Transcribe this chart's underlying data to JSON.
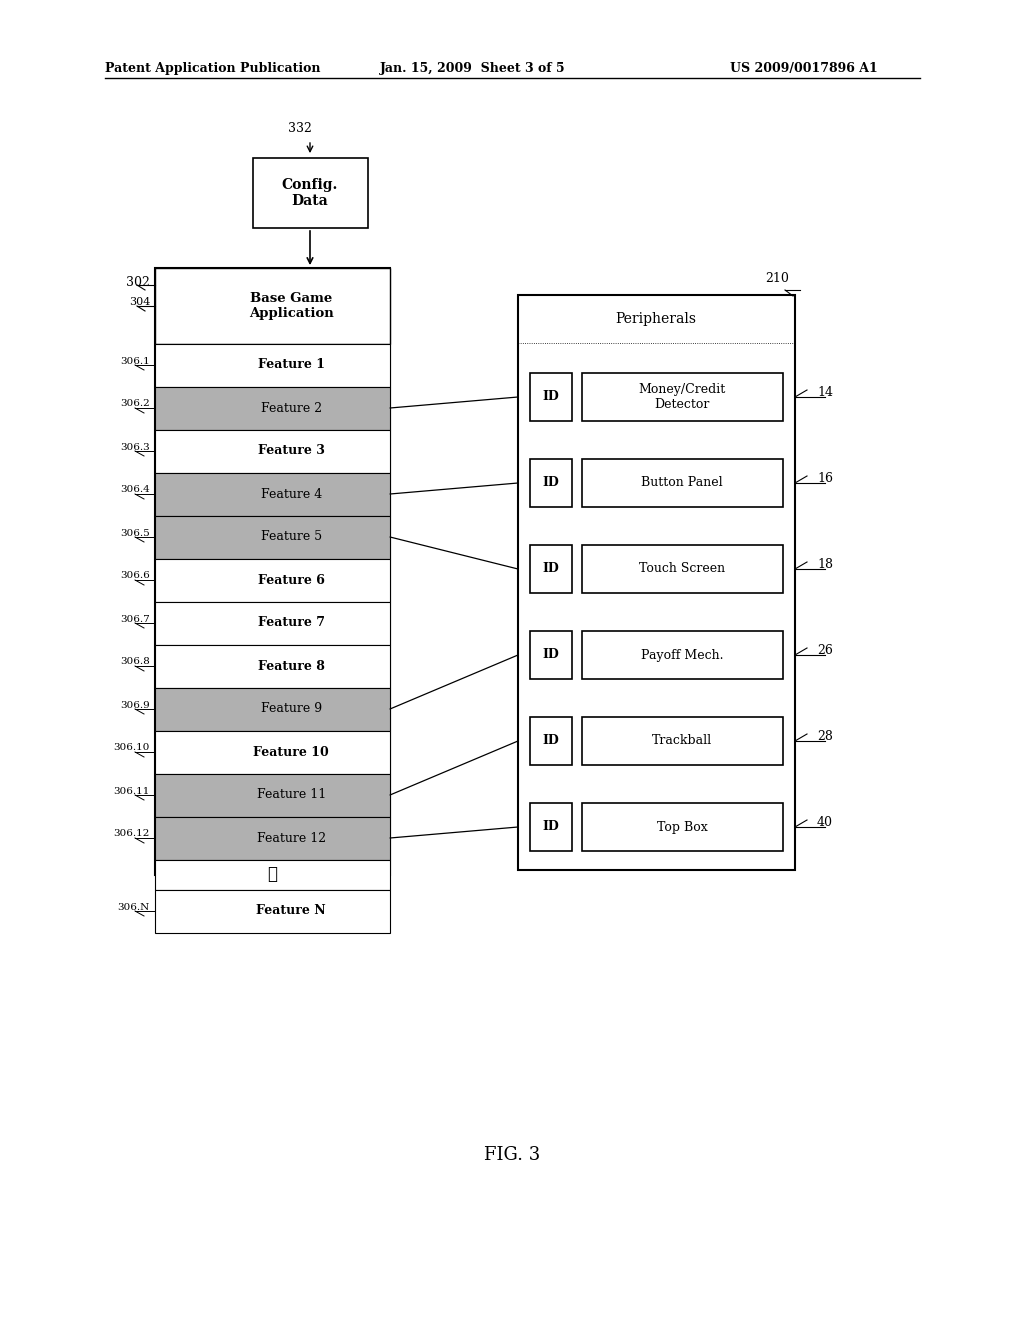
{
  "bg_color": "#ffffff",
  "header_text1": "Patent Application Publication",
  "header_text2": "Jan. 15, 2009  Sheet 3 of 5",
  "header_text3": "US 2009/0017896 A1",
  "footer_text": "FIG. 3",
  "config_box": {
    "label": "Config.\nData",
    "ref": "332"
  },
  "left_box": {
    "ref": "302",
    "base_ref": "304",
    "base_label": "Base Game\nApplication",
    "features": [
      {
        "ref": "306.1",
        "label": "Feature 1",
        "shaded": false
      },
      {
        "ref": "306.2",
        "label": "Feature 2",
        "shaded": true
      },
      {
        "ref": "306.3",
        "label": "Feature 3",
        "shaded": false
      },
      {
        "ref": "306.4",
        "label": "Feature 4",
        "shaded": true
      },
      {
        "ref": "306.5",
        "label": "Feature 5",
        "shaded": true
      },
      {
        "ref": "306.6",
        "label": "Feature 6",
        "shaded": false
      },
      {
        "ref": "306.7",
        "label": "Feature 7",
        "shaded": false
      },
      {
        "ref": "306.8",
        "label": "Feature 8",
        "shaded": false
      },
      {
        "ref": "306.9",
        "label": "Feature 9",
        "shaded": true
      },
      {
        "ref": "306.10",
        "label": "Feature 10",
        "shaded": false
      },
      {
        "ref": "306.11",
        "label": "Feature 11",
        "shaded": true
      },
      {
        "ref": "306.12",
        "label": "Feature 12",
        "shaded": true
      },
      {
        "ref": "",
        "label": "...",
        "shaded": false
      },
      {
        "ref": "306.N",
        "label": "Feature N",
        "shaded": false
      }
    ]
  },
  "right_box": {
    "ref": "210",
    "title": "Peripherals",
    "peripherals": [
      {
        "id": "ID",
        "label": "Money/Credit\nDetector",
        "ref": "14"
      },
      {
        "id": "ID",
        "label": "Button Panel",
        "ref": "16"
      },
      {
        "id": "ID",
        "label": "Touch Screen",
        "ref": "18"
      },
      {
        "id": "ID",
        "label": "Payoff Mech.",
        "ref": "26"
      },
      {
        "id": "ID",
        "label": "Trackball",
        "ref": "28"
      },
      {
        "id": "ID",
        "label": "Top Box",
        "ref": "40"
      }
    ]
  },
  "connections": [
    {
      "from_feature": 1,
      "to_peripheral": 0
    },
    {
      "from_feature": 3,
      "to_peripheral": 1
    },
    {
      "from_feature": 4,
      "to_peripheral": 2
    },
    {
      "from_feature": 8,
      "to_peripheral": 3
    },
    {
      "from_feature": 10,
      "to_peripheral": 4
    },
    {
      "from_feature": 11,
      "to_peripheral": 5
    }
  ],
  "shaded_color": "#b0b0b0",
  "white_color": "#ffffff",
  "text_color": "#000000",
  "box_edge": "#000000"
}
